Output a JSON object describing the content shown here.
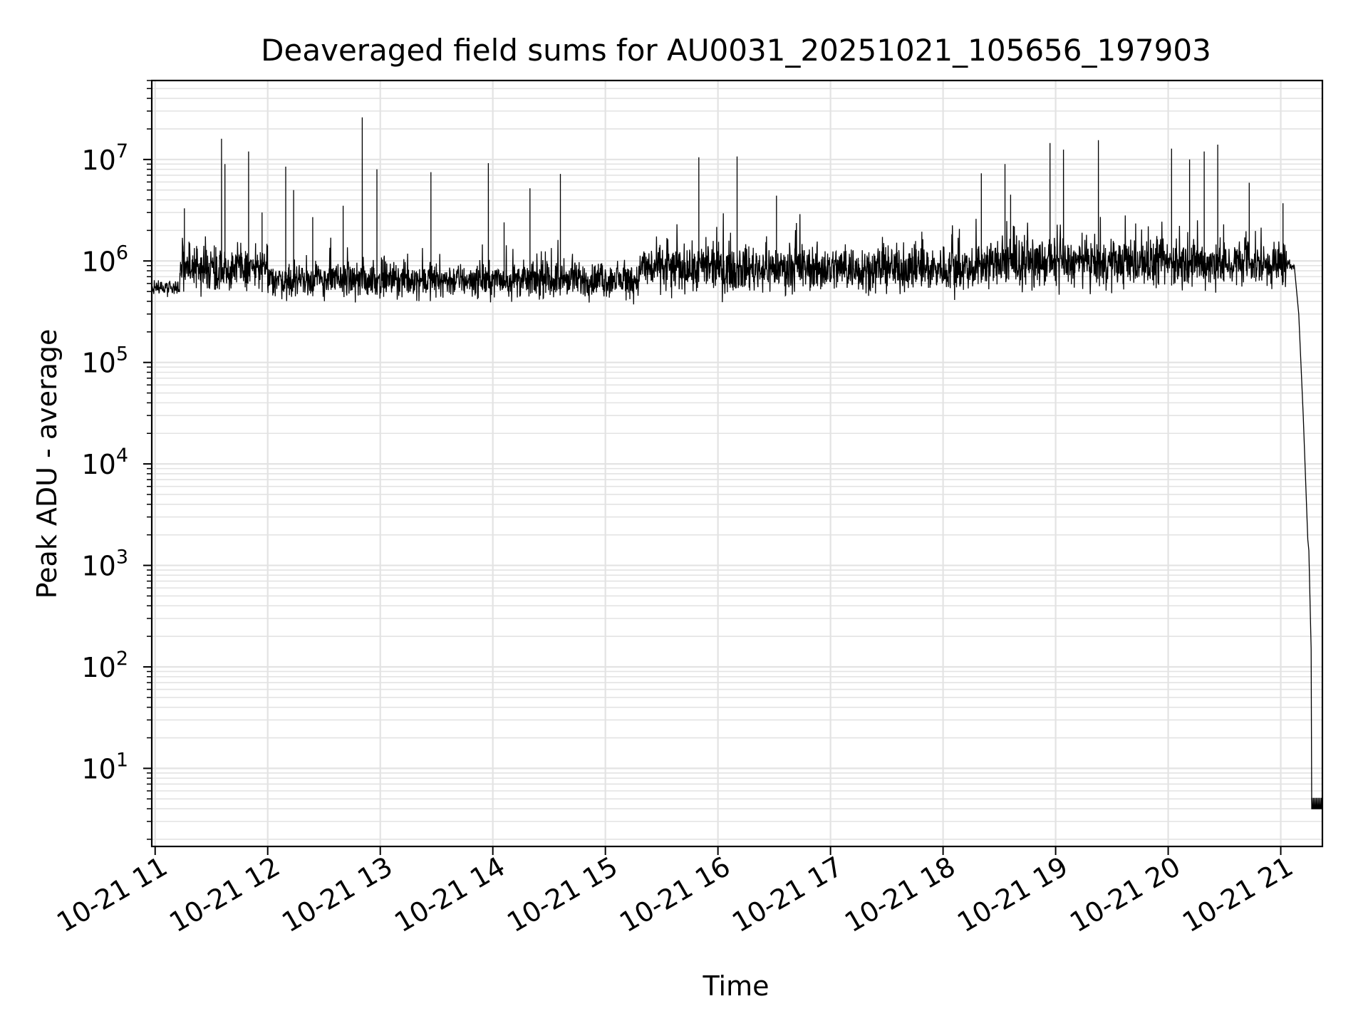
{
  "chart_data": {
    "type": "line",
    "title": "Deaveraged field sums for AU0031_20251021_105656_197903",
    "xlabel": "Time",
    "ylabel": "Peak ADU - average",
    "yscale": "log",
    "grid": true,
    "x_tick_labels": [
      "10-21 11",
      "10-21 12",
      "10-21 13",
      "10-21 14",
      "10-21 15",
      "10-21 16",
      "10-21 17",
      "10-21 18",
      "10-21 19",
      "10-21 20",
      "10-21 21"
    ],
    "x_tick_hours": [
      11,
      12,
      13,
      14,
      15,
      16,
      17,
      18,
      19,
      20,
      21
    ],
    "xlim_hours": [
      10.97,
      21.37
    ],
    "y_ticks": [
      10,
      100,
      1000,
      10000,
      100000,
      1000000,
      10000000
    ],
    "y_tick_labels": [
      {
        "base": "10",
        "exp": "1"
      },
      {
        "base": "10",
        "exp": "2"
      },
      {
        "base": "10",
        "exp": "3"
      },
      {
        "base": "10",
        "exp": "4"
      },
      {
        "base": "10",
        "exp": "5"
      },
      {
        "base": "10",
        "exp": "6"
      },
      {
        "base": "10",
        "exp": "7"
      }
    ],
    "ylim": [
      1.7,
      60000000
    ],
    "series": [
      {
        "color": "#000000",
        "segments": [
          {
            "from_hour": 10.97,
            "to_hour": 11.22,
            "level": 550000,
            "spread_dex": 0.07
          },
          {
            "from_hour": 11.22,
            "to_hour": 12.0,
            "level": 850000,
            "spread_dex": 0.2
          },
          {
            "from_hour": 12.0,
            "to_hour": 15.3,
            "level": 650000,
            "spread_dex": 0.15
          },
          {
            "from_hour": 15.3,
            "to_hour": 18.3,
            "level": 850000,
            "spread_dex": 0.2
          },
          {
            "from_hour": 18.3,
            "to_hour": 21.05,
            "level": 950000,
            "spread_dex": 0.2
          },
          {
            "from_hour": 21.05,
            "to_hour": 21.12,
            "level": 900000,
            "spread_dex": 0.05
          }
        ],
        "spikes": [
          {
            "hour": 11.26,
            "value": 3300000
          },
          {
            "hour": 11.59,
            "value": 16000000
          },
          {
            "hour": 11.62,
            "value": 9000000
          },
          {
            "hour": 11.83,
            "value": 12000000
          },
          {
            "hour": 11.95,
            "value": 3000000
          },
          {
            "hour": 12.16,
            "value": 8500000
          },
          {
            "hour": 12.23,
            "value": 5000000
          },
          {
            "hour": 12.4,
            "value": 2700000
          },
          {
            "hour": 12.67,
            "value": 3500000
          },
          {
            "hour": 12.84,
            "value": 26000000
          },
          {
            "hour": 12.97,
            "value": 8000000
          },
          {
            "hour": 13.45,
            "value": 7500000
          },
          {
            "hour": 13.96,
            "value": 9200000
          },
          {
            "hour": 14.1,
            "value": 2400000
          },
          {
            "hour": 14.33,
            "value": 5200000
          },
          {
            "hour": 14.6,
            "value": 7200000
          },
          {
            "hour": 15.83,
            "value": 10500000
          },
          {
            "hour": 16.17,
            "value": 10700000
          },
          {
            "hour": 16.52,
            "value": 4400000
          },
          {
            "hour": 18.34,
            "value": 7300000
          },
          {
            "hour": 18.55,
            "value": 9000000
          },
          {
            "hour": 18.6,
            "value": 4500000
          },
          {
            "hour": 18.95,
            "value": 14500000
          },
          {
            "hour": 19.07,
            "value": 12500000
          },
          {
            "hour": 19.38,
            "value": 15500000
          },
          {
            "hour": 20.03,
            "value": 12800000
          },
          {
            "hour": 20.19,
            "value": 10000000
          },
          {
            "hour": 20.32,
            "value": 12000000
          },
          {
            "hour": 20.44,
            "value": 14000000
          },
          {
            "hour": 20.72,
            "value": 5900000
          },
          {
            "hour": 21.02,
            "value": 3700000
          }
        ],
        "decay": [
          {
            "hour": 21.12,
            "value": 900000
          },
          {
            "hour": 21.16,
            "value": 300000
          },
          {
            "hour": 21.2,
            "value": 30000
          },
          {
            "hour": 21.24,
            "value": 1800
          },
          {
            "hour": 21.25,
            "value": 1400
          },
          {
            "hour": 21.27,
            "value": 150
          },
          {
            "hour": 21.275,
            "value": 4
          },
          {
            "hour": 21.37,
            "value": 4
          }
        ]
      }
    ]
  }
}
